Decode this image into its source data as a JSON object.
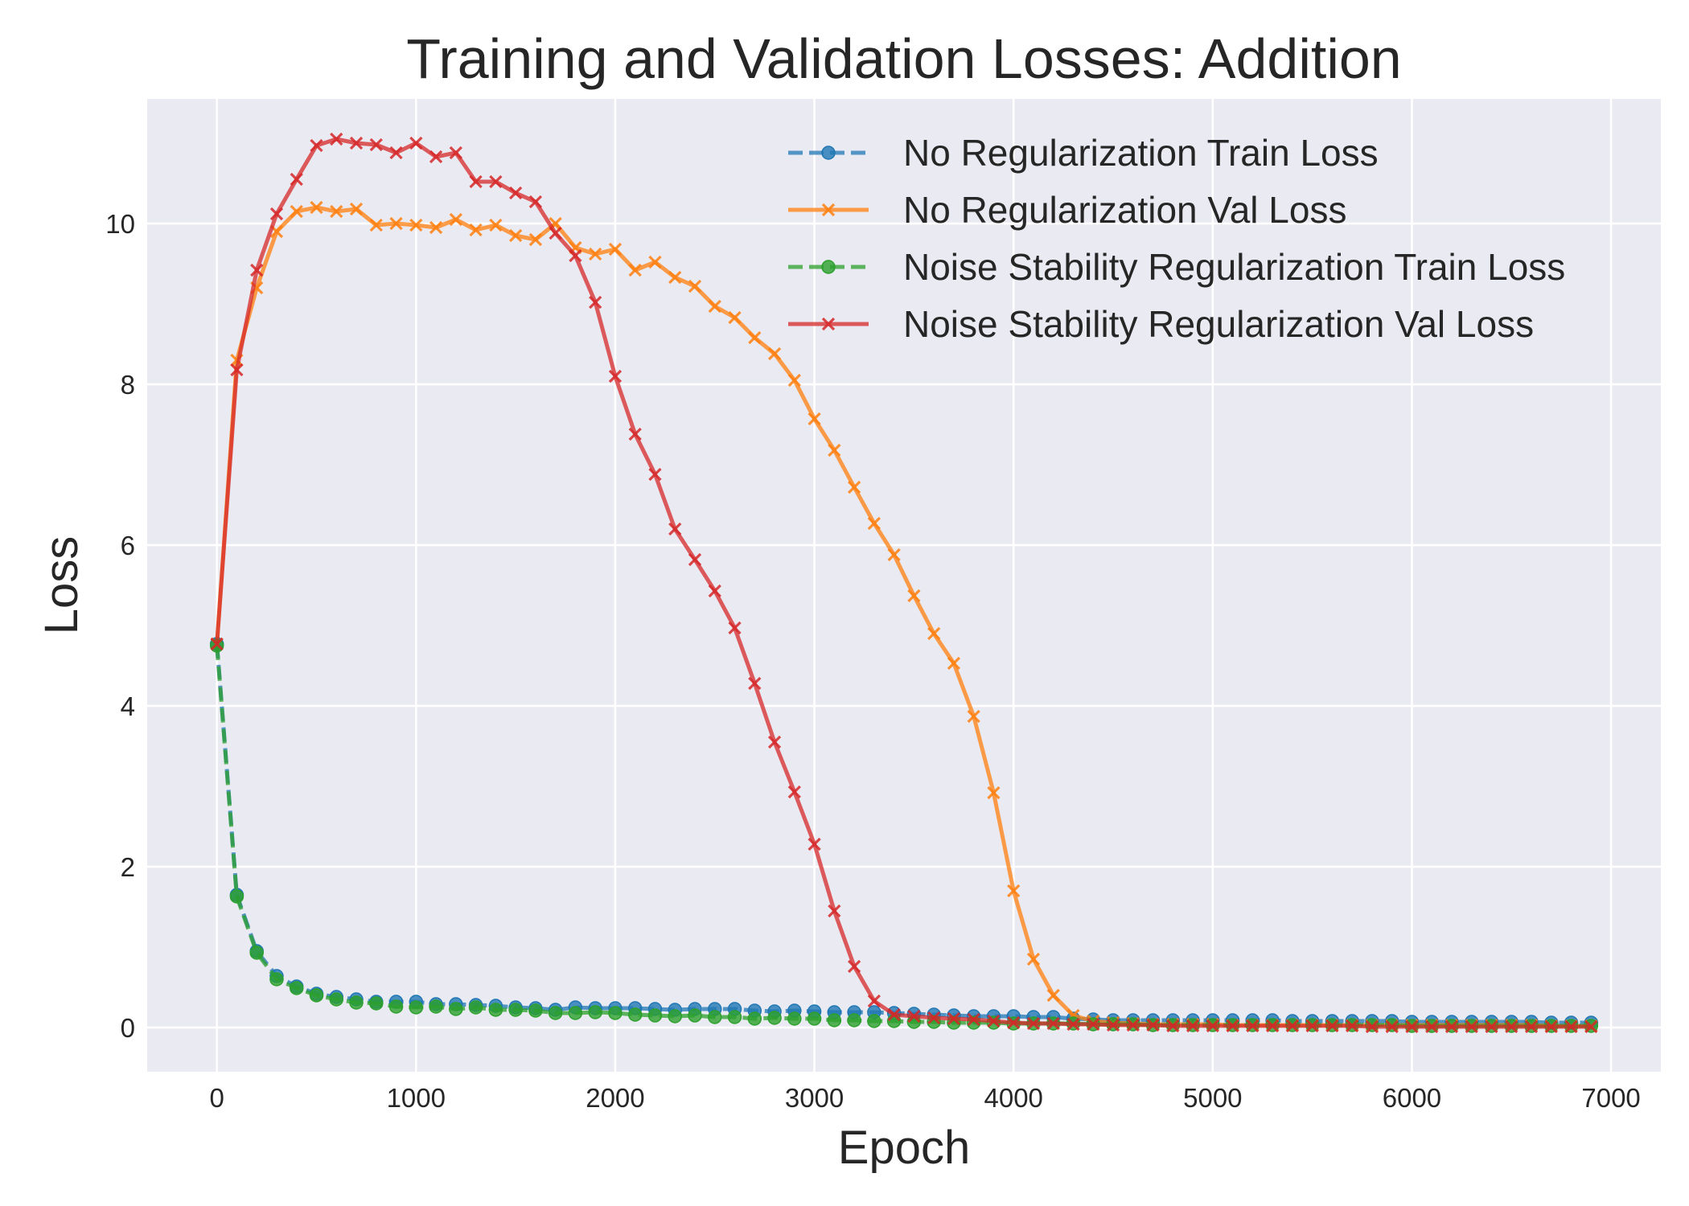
{
  "chart_data": {
    "type": "line",
    "title": "Training and Validation Losses: Addition",
    "xlabel": "Epoch",
    "ylabel": "Loss",
    "xlim": [
      -350,
      7250
    ],
    "ylim": [
      -0.55,
      11.55
    ],
    "grid": true,
    "legend_position": "top-right",
    "x_ticks": [
      0,
      1000,
      2000,
      3000,
      4000,
      5000,
      6000,
      7000
    ],
    "x_tick_labels": [
      "0",
      "1000",
      "2000",
      "3000",
      "4000",
      "5000",
      "6000",
      "7000"
    ],
    "y_ticks": [
      0,
      2,
      4,
      6,
      8,
      10
    ],
    "y_tick_labels": [
      "0",
      "2",
      "4",
      "6",
      "8",
      "10"
    ],
    "x": [
      0,
      100,
      200,
      300,
      400,
      500,
      600,
      700,
      800,
      900,
      1000,
      1100,
      1200,
      1300,
      1400,
      1500,
      1600,
      1700,
      1800,
      1900,
      2000,
      2100,
      2200,
      2300,
      2400,
      2500,
      2600,
      2700,
      2800,
      2900,
      3000,
      3100,
      3200,
      3300,
      3400,
      3500,
      3600,
      3700,
      3800,
      3900,
      4000,
      4100,
      4200,
      4300,
      4400,
      4500,
      4600,
      4700,
      4800,
      4900,
      5000,
      5100,
      5200,
      5300,
      5400,
      5500,
      5600,
      5700,
      5800,
      5900,
      6000,
      6100,
      6200,
      6300,
      6400,
      6500,
      6600,
      6700,
      6800,
      6900
    ],
    "series": [
      {
        "name": "No Regularization Train Loss",
        "color": "#1f77b4",
        "line_style": "dashed",
        "marker": "circle",
        "values": [
          4.77,
          1.65,
          0.95,
          0.64,
          0.51,
          0.42,
          0.38,
          0.35,
          0.32,
          0.32,
          0.32,
          0.29,
          0.29,
          0.28,
          0.27,
          0.25,
          0.24,
          0.22,
          0.25,
          0.24,
          0.24,
          0.24,
          0.23,
          0.22,
          0.23,
          0.23,
          0.23,
          0.21,
          0.2,
          0.21,
          0.2,
          0.19,
          0.19,
          0.19,
          0.18,
          0.17,
          0.16,
          0.15,
          0.14,
          0.14,
          0.14,
          0.13,
          0.13,
          0.11,
          0.1,
          0.09,
          0.09,
          0.09,
          0.09,
          0.09,
          0.09,
          0.09,
          0.09,
          0.09,
          0.08,
          0.08,
          0.08,
          0.08,
          0.08,
          0.08,
          0.07,
          0.07,
          0.07,
          0.07,
          0.07,
          0.07,
          0.07,
          0.06,
          0.06,
          0.06
        ]
      },
      {
        "name": "No Regularization Val Loss",
        "color": "#ff7f0e",
        "line_style": "solid",
        "marker": "x",
        "values": [
          4.77,
          8.3,
          9.2,
          9.9,
          10.15,
          10.2,
          10.15,
          10.18,
          9.98,
          10.0,
          9.98,
          9.95,
          10.05,
          9.92,
          9.98,
          9.85,
          9.8,
          10.0,
          9.7,
          9.62,
          9.68,
          9.42,
          9.52,
          9.33,
          9.22,
          8.97,
          8.83,
          8.58,
          8.38,
          8.05,
          7.57,
          7.18,
          6.72,
          6.27,
          5.88,
          5.37,
          4.9,
          4.53,
          3.87,
          2.92,
          1.7,
          0.85,
          0.4,
          0.15,
          0.08,
          0.06,
          0.05,
          0.04,
          0.04,
          0.04,
          0.04,
          0.03,
          0.03,
          0.03,
          0.03,
          0.03,
          0.03,
          0.03,
          0.03,
          0.03,
          0.03,
          0.03,
          0.03,
          0.03,
          0.03,
          0.03,
          0.03,
          0.02,
          0.02,
          0.02
        ]
      },
      {
        "name": "Noise Stability Regularization Train Loss",
        "color": "#2ca02c",
        "line_style": "dashed",
        "marker": "circle",
        "values": [
          4.75,
          1.63,
          0.93,
          0.6,
          0.49,
          0.4,
          0.35,
          0.31,
          0.3,
          0.26,
          0.25,
          0.26,
          0.23,
          0.25,
          0.22,
          0.22,
          0.21,
          0.18,
          0.18,
          0.19,
          0.18,
          0.16,
          0.15,
          0.14,
          0.15,
          0.13,
          0.13,
          0.11,
          0.12,
          0.11,
          0.11,
          0.09,
          0.09,
          0.08,
          0.08,
          0.07,
          0.07,
          0.06,
          0.06,
          0.06,
          0.05,
          0.05,
          0.05,
          0.05,
          0.04,
          0.04,
          0.04,
          0.03,
          0.03,
          0.03,
          0.03,
          0.03,
          0.03,
          0.03,
          0.03,
          0.03,
          0.03,
          0.03,
          0.03,
          0.03,
          0.02,
          0.02,
          0.02,
          0.02,
          0.02,
          0.02,
          0.02,
          0.02,
          0.02,
          0.02
        ]
      },
      {
        "name": "Noise Stability Regularization Val Loss",
        "color": "#d62728",
        "line_style": "solid",
        "marker": "x",
        "values": [
          4.77,
          8.18,
          9.42,
          10.12,
          10.55,
          10.97,
          11.05,
          11.0,
          10.98,
          10.88,
          11.0,
          10.83,
          10.88,
          10.52,
          10.52,
          10.38,
          10.27,
          9.88,
          9.6,
          9.02,
          8.1,
          7.38,
          6.88,
          6.2,
          5.82,
          5.43,
          4.97,
          4.28,
          3.55,
          2.93,
          2.28,
          1.45,
          0.76,
          0.33,
          0.16,
          0.14,
          0.12,
          0.11,
          0.1,
          0.08,
          0.06,
          0.05,
          0.05,
          0.04,
          0.04,
          0.03,
          0.03,
          0.03,
          0.02,
          0.02,
          0.02,
          0.02,
          0.02,
          0.02,
          0.02,
          0.02,
          0.02,
          0.02,
          0.01,
          0.01,
          0.01,
          0.01,
          0.01,
          0.01,
          0.01,
          0.01,
          0.01,
          0.01,
          0.01,
          0.01
        ]
      }
    ]
  },
  "theme": {
    "plot_background": "#eaeaf2",
    "grid_color": "#ffffff",
    "text_color": "#262626"
  }
}
